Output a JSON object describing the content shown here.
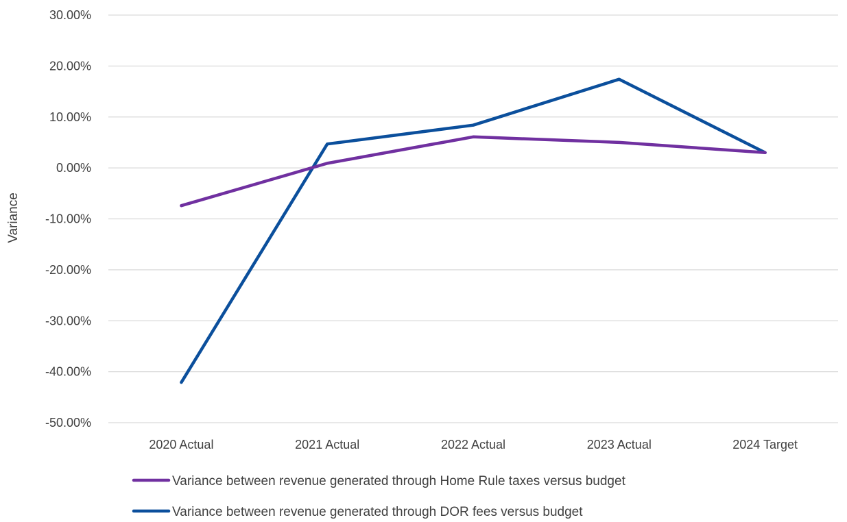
{
  "chart_data": {
    "type": "line",
    "ylabel": "Variance",
    "ylim": [
      -50,
      30
    ],
    "y_tick_step": 10,
    "y_tick_labels": [
      "30.00%",
      "20.00%",
      "10.00%",
      "0.00%",
      "-10.00%",
      "-20.00%",
      "-30.00%",
      "-40.00%",
      "-50.00%"
    ],
    "categories": [
      "2020 Actual",
      "2021 Actual",
      "2022 Actual",
      "2023 Actual",
      "2024 Target"
    ],
    "grid": "horizontal",
    "legend_position": "bottom",
    "series": [
      {
        "name": "Variance between revenue generated through Home Rule taxes versus budget",
        "color": "#7030A0",
        "values": [
          -7.4,
          0.9,
          6.1,
          5.0,
          3.0
        ]
      },
      {
        "name": "Variance between revenue generated through DOR fees versus budget",
        "color": "#0B4F9C",
        "values": [
          -42.1,
          4.7,
          8.4,
          17.4,
          3.0
        ]
      }
    ]
  }
}
